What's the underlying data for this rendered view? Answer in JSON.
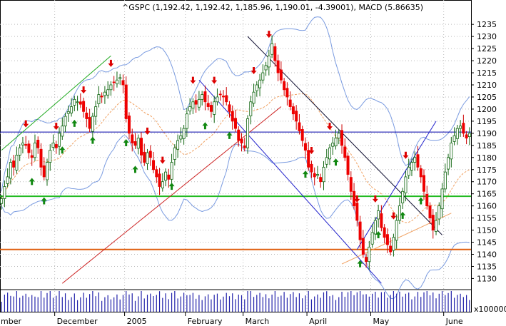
{
  "chart_data": {
    "type": "candlestick",
    "title": "^GSPC (1,192.42, 1,192.42, 1,185.96, 1,190.01, -4.39001), MACD (5.86635)",
    "volume_unit_label": "x100000",
    "ylim": [
      1126,
      1238
    ],
    "y_ticks": [
      1130,
      1135,
      1140,
      1145,
      1150,
      1155,
      1160,
      1165,
      1170,
      1175,
      1180,
      1185,
      1190,
      1195,
      1200,
      1205,
      1210,
      1215,
      1220,
      1225,
      1230,
      1235
    ],
    "month_labels": [
      "mber",
      "December",
      "2005",
      "February",
      "March",
      "April",
      "May",
      "June"
    ],
    "month_label_day_index": [
      0,
      18,
      41,
      61,
      80,
      101,
      122,
      146
    ],
    "num_days": 155,
    "grid": true,
    "horizontal_levels": [
      {
        "name": "resistance",
        "value": 1190.5,
        "color": "#0000aa"
      },
      {
        "name": "support-green",
        "value": 1164,
        "color": "#22bb22"
      },
      {
        "name": "support-orange",
        "value": 1142,
        "color": "#e06010"
      }
    ],
    "candles_close": [
      1163,
      1168,
      1172,
      1178,
      1176,
      1181,
      1184,
      1186,
      1185,
      1182,
      1180,
      1186,
      1184,
      1176,
      1172,
      1178,
      1183,
      1186,
      1184,
      1190,
      1193,
      1197,
      1199,
      1201,
      1204,
      1203,
      1202,
      1199,
      1196,
      1192,
      1197,
      1201,
      1206,
      1205,
      1207,
      1208,
      1210,
      1211,
      1212,
      1213,
      1210,
      1196,
      1190,
      1186,
      1185,
      1188,
      1181,
      1178,
      1182,
      1180,
      1175,
      1172,
      1168,
      1170,
      1174,
      1171,
      1178,
      1184,
      1187,
      1189,
      1192,
      1198,
      1201,
      1203,
      1202,
      1204,
      1206,
      1203,
      1201,
      1199,
      1203,
      1205,
      1206,
      1205,
      1203,
      1199,
      1195,
      1192,
      1187,
      1186,
      1184,
      1196,
      1203,
      1207,
      1210,
      1212,
      1215,
      1218,
      1222,
      1227,
      1220,
      1215,
      1212,
      1208,
      1205,
      1201,
      1198,
      1195,
      1191,
      1187,
      1183,
      1176,
      1174,
      1172,
      1173,
      1170,
      1176,
      1180,
      1184,
      1186,
      1188,
      1190,
      1185,
      1180,
      1173,
      1166,
      1160,
      1154,
      1146,
      1140,
      1137,
      1143,
      1149,
      1154,
      1158,
      1151,
      1147,
      1144,
      1141,
      1147,
      1154,
      1160,
      1166,
      1172,
      1176,
      1178,
      1180,
      1176,
      1172,
      1166,
      1160,
      1155,
      1150,
      1154,
      1160,
      1167,
      1174,
      1180,
      1186,
      1189,
      1192,
      1193,
      1190,
      1188,
      1190
    ],
    "series": [
      {
        "name": "upper-band",
        "color": "#7a9be0"
      },
      {
        "name": "lower-band",
        "color": "#7a9be0"
      },
      {
        "name": "moving-average",
        "color": "#f0a060"
      }
    ],
    "trendlines": [
      {
        "color": "#22aa22",
        "from_day": 0,
        "from_value": 1183,
        "to_day": 36,
        "to_value": 1222
      },
      {
        "color": "#cc2222",
        "from_day": 20,
        "from_value": 1128,
        "to_day": 92,
        "to_value": 1201
      },
      {
        "color": "#2222cc",
        "from_day": 65,
        "from_value": 1212,
        "to_day": 125,
        "to_value": 1128
      },
      {
        "color": "#111133",
        "from_day": 81,
        "from_value": 1230,
        "to_day": 145,
        "to_value": 1148
      },
      {
        "color": "#2222cc",
        "from_day": 117,
        "from_value": 1142,
        "to_day": 143,
        "to_value": 1195
      },
      {
        "color": "#f0a060",
        "from_day": 112,
        "from_value": 1136,
        "to_day": 148,
        "to_value": 1157
      }
    ],
    "sell_signal_days": [
      8,
      18,
      27,
      36,
      48,
      53,
      63,
      70,
      83,
      88,
      102,
      108,
      117,
      123,
      129,
      133
    ],
    "buy_signal_days": [
      10,
      14,
      20,
      24,
      30,
      41,
      44,
      56,
      67,
      75,
      100,
      110,
      118,
      124,
      132,
      138
    ]
  }
}
